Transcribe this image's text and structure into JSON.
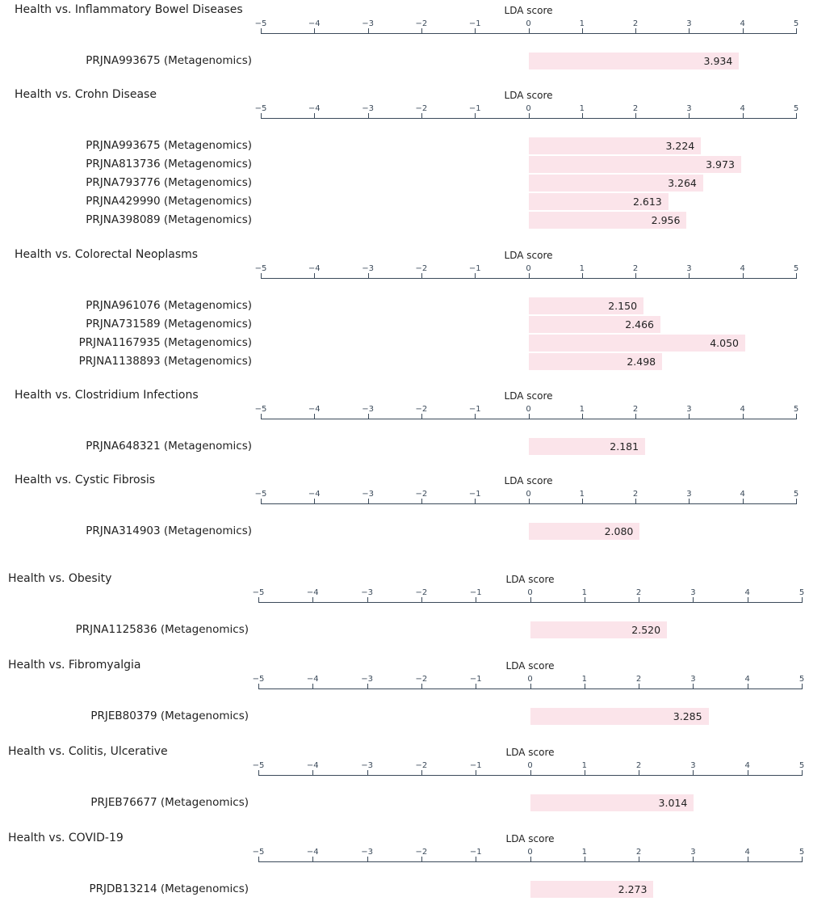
{
  "chart_data": [
    {
      "type": "bar",
      "title": "Health vs. Inflammatory Bowel Diseases",
      "xlabel": "LDA score",
      "xlim": [
        -5,
        5
      ],
      "ticks": [
        "−5",
        "−4",
        "−3",
        "−2",
        "−1",
        "0",
        "1",
        "2",
        "3",
        "4",
        "5"
      ],
      "categories": [
        "PRJNA993675 (Metagenomics)"
      ],
      "values": [
        3.934
      ],
      "value_labels": [
        "3.934"
      ]
    },
    {
      "type": "bar",
      "title": "Health vs. Crohn Disease",
      "xlabel": "LDA score",
      "xlim": [
        -5,
        5
      ],
      "ticks": [
        "−5",
        "−4",
        "−3",
        "−2",
        "−1",
        "0",
        "1",
        "2",
        "3",
        "4",
        "5"
      ],
      "categories": [
        "PRJNA993675 (Metagenomics)",
        "PRJNA813736 (Metagenomics)",
        "PRJNA793776 (Metagenomics)",
        "PRJNA429990 (Metagenomics)",
        "PRJNA398089 (Metagenomics)"
      ],
      "values": [
        3.224,
        3.973,
        3.264,
        2.613,
        2.956
      ],
      "value_labels": [
        "3.224",
        "3.973",
        "3.264",
        "2.613",
        "2.956"
      ]
    },
    {
      "type": "bar",
      "title": "Health vs. Colorectal Neoplasms",
      "xlabel": "LDA score",
      "xlim": [
        -5,
        5
      ],
      "ticks": [
        "−5",
        "−4",
        "−3",
        "−2",
        "−1",
        "0",
        "1",
        "2",
        "3",
        "4",
        "5"
      ],
      "categories": [
        "PRJNA961076 (Metagenomics)",
        "PRJNA731589 (Metagenomics)",
        "PRJNA1167935 (Metagenomics)",
        "PRJNA1138893 (Metagenomics)"
      ],
      "values": [
        2.15,
        2.466,
        4.05,
        2.498
      ],
      "value_labels": [
        "2.150",
        "2.466",
        "4.050",
        "2.498"
      ]
    },
    {
      "type": "bar",
      "title": "Health vs. Clostridium Infections",
      "xlabel": "LDA score",
      "xlim": [
        -5,
        5
      ],
      "ticks": [
        "−5",
        "−4",
        "−3",
        "−2",
        "−1",
        "0",
        "1",
        "2",
        "3",
        "4",
        "5"
      ],
      "categories": [
        "PRJNA648321 (Metagenomics)"
      ],
      "values": [
        2.181
      ],
      "value_labels": [
        "2.181"
      ]
    },
    {
      "type": "bar",
      "title": "Health vs. Cystic Fibrosis",
      "xlabel": "LDA score",
      "xlim": [
        -5,
        5
      ],
      "ticks": [
        "−5",
        "−4",
        "−3",
        "−2",
        "−1",
        "0",
        "1",
        "2",
        "3",
        "4",
        "5"
      ],
      "categories": [
        "PRJNA314903 (Metagenomics)"
      ],
      "values": [
        2.08
      ],
      "value_labels": [
        "2.080"
      ]
    },
    {
      "type": "bar",
      "title": "Health vs. Obesity",
      "xlabel": "LDA score",
      "xlim": [
        -5,
        5
      ],
      "ticks": [
        "−5",
        "−4",
        "−3",
        "−2",
        "−1",
        "0",
        "1",
        "2",
        "3",
        "4",
        "5"
      ],
      "categories": [
        "PRJNA1125836 (Metagenomics)"
      ],
      "values": [
        2.52
      ],
      "value_labels": [
        "2.520"
      ]
    },
    {
      "type": "bar",
      "title": "Health vs. Fibromyalgia",
      "xlabel": "LDA score",
      "xlim": [
        -5,
        5
      ],
      "ticks": [
        "−5",
        "−4",
        "−3",
        "−2",
        "−1",
        "0",
        "1",
        "2",
        "3",
        "4",
        "5"
      ],
      "categories": [
        "PRJEB80379 (Metagenomics)"
      ],
      "values": [
        3.285
      ],
      "value_labels": [
        "3.285"
      ]
    },
    {
      "type": "bar",
      "title": "Health vs. Colitis, Ulcerative",
      "xlabel": "LDA score",
      "xlim": [
        -5,
        5
      ],
      "ticks": [
        "−5",
        "−4",
        "−3",
        "−2",
        "−1",
        "0",
        "1",
        "2",
        "3",
        "4",
        "5"
      ],
      "categories": [
        "PRJEB76677 (Metagenomics)"
      ],
      "values": [
        3.014
      ],
      "value_labels": [
        "3.014"
      ]
    },
    {
      "type": "bar",
      "title": "Health vs. COVID-19",
      "xlabel": "LDA score",
      "xlim": [
        -5,
        5
      ],
      "ticks": [
        "−5",
        "−4",
        "−3",
        "−2",
        "−1",
        "0",
        "1",
        "2",
        "3",
        "4",
        "5"
      ],
      "categories": [
        "PRJDB13214 (Metagenomics)"
      ],
      "values": [
        2.273
      ],
      "value_labels": [
        "2.273"
      ]
    }
  ],
  "colors": {
    "bar": "#fbe4ea",
    "axis": "#3b4a5a",
    "text": "#222222"
  }
}
